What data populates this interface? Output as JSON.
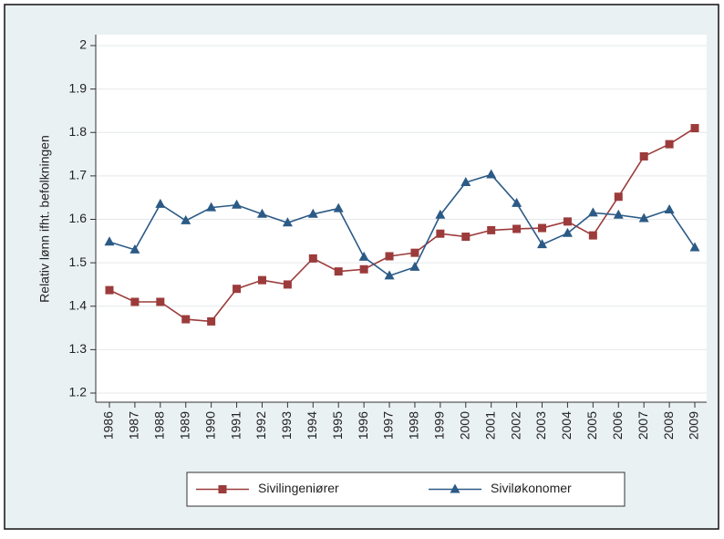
{
  "chart_data": {
    "type": "line",
    "y_label": "Relativ lønn ifht. befolkningen",
    "categories": [
      "1986",
      "1987",
      "1988",
      "1989",
      "1990",
      "1991",
      "1992",
      "1993",
      "1994",
      "1995",
      "1996",
      "1997",
      "1998",
      "1999",
      "2000",
      "2001",
      "2002",
      "2003",
      "2004",
      "2005",
      "2006",
      "2007",
      "2008",
      "2009"
    ],
    "series": [
      {
        "name": "Sivilingeniører",
        "color": "#9c3b3b",
        "marker": "square",
        "values": [
          1.437,
          1.41,
          1.41,
          1.37,
          1.365,
          1.44,
          1.46,
          1.45,
          1.51,
          1.48,
          1.485,
          1.515,
          1.523,
          1.567,
          1.56,
          1.575,
          1.578,
          1.58,
          1.595,
          1.563,
          1.652,
          1.745,
          1.773,
          1.81
        ]
      },
      {
        "name": "Siviløkonomer",
        "color": "#2b5a86",
        "marker": "triangle",
        "values": [
          1.548,
          1.53,
          1.635,
          1.597,
          1.627,
          1.633,
          1.612,
          1.592,
          1.612,
          1.625,
          1.513,
          1.47,
          1.49,
          1.61,
          1.685,
          1.703,
          1.637,
          1.542,
          1.568,
          1.615,
          1.61,
          1.602,
          1.622,
          1.535
        ]
      }
    ],
    "ylim": [
      1.2,
      2
    ],
    "yticks": [
      1.2,
      1.3,
      1.4,
      1.5,
      1.6,
      1.7,
      1.8,
      1.9,
      2
    ],
    "grid": true,
    "legend": "bottom"
  }
}
